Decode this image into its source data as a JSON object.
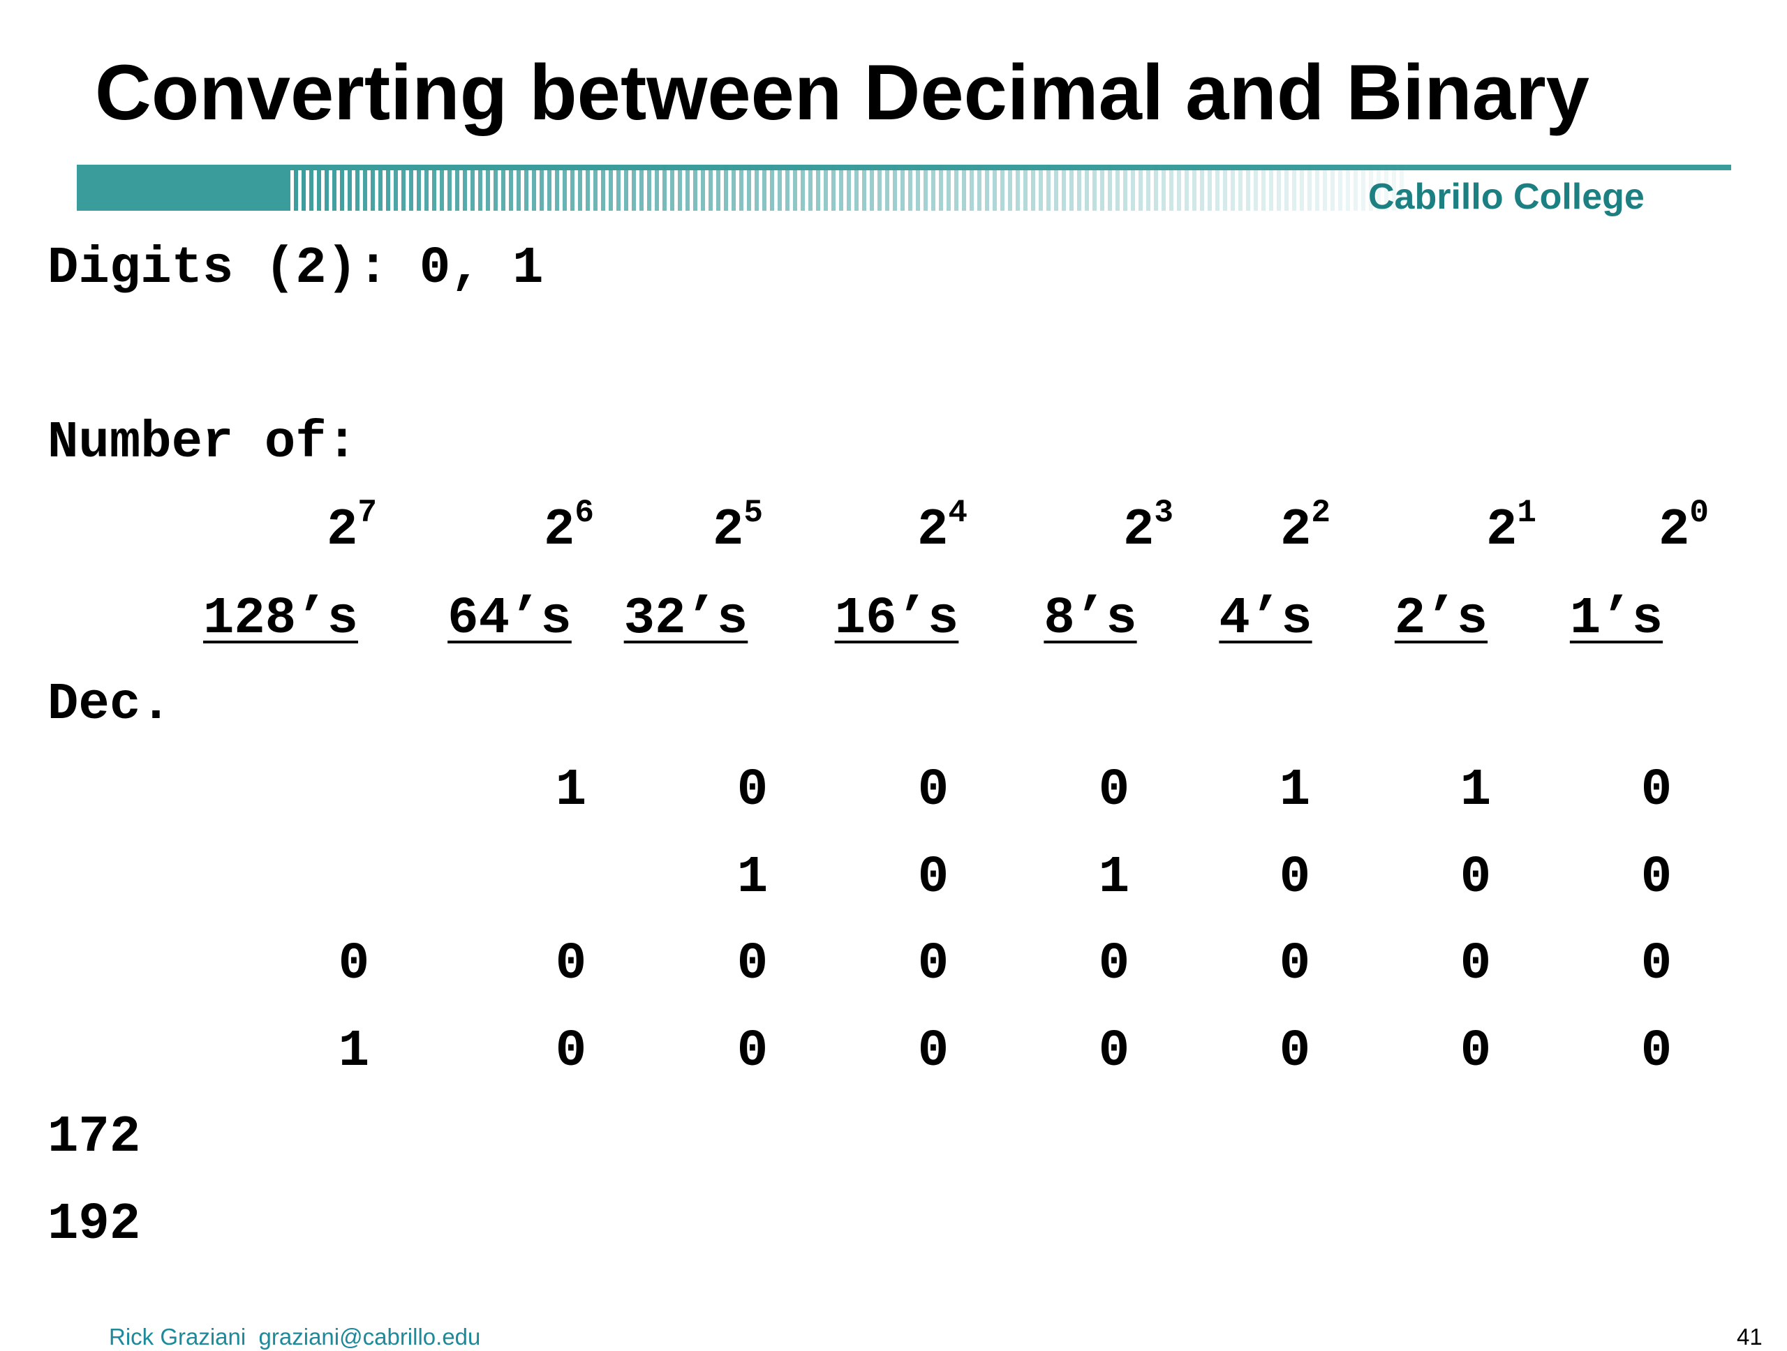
{
  "title": "Converting between Decimal and Binary",
  "brand": {
    "name": "Cabrillo College",
    "color": "#3b9c9c"
  },
  "digits_line": "Digits (2): 0, 1",
  "number_of_label": "Number of:",
  "powers": [
    {
      "base": "2",
      "exp": "7"
    },
    {
      "base": "2",
      "exp": "6"
    },
    {
      "base": "2",
      "exp": "5"
    },
    {
      "base": "2",
      "exp": "4"
    },
    {
      "base": "2",
      "exp": "3"
    },
    {
      "base": "2",
      "exp": "2"
    },
    {
      "base": "2",
      "exp": "1"
    },
    {
      "base": "2",
      "exp": "0"
    }
  ],
  "place_headers": [
    "128’s",
    "64’s",
    "32’s",
    "16’s",
    "8’s",
    "4’s",
    "2’s",
    "1’s"
  ],
  "dec_label": "Dec.",
  "rows": [
    [
      "",
      "1",
      "0",
      "0",
      "0",
      "1",
      "1",
      "0"
    ],
    [
      "",
      "",
      "1",
      "0",
      "1",
      "0",
      "0",
      "0"
    ],
    [
      "0",
      "0",
      "0",
      "0",
      "0",
      "0",
      "0",
      "0"
    ],
    [
      "1",
      "0",
      "0",
      "0",
      "0",
      "0",
      "0",
      "0"
    ]
  ],
  "decimals": [
    "172",
    "192"
  ],
  "footer": {
    "author": "Rick Graziani  graziani@cabrillo.edu",
    "page": "41"
  }
}
